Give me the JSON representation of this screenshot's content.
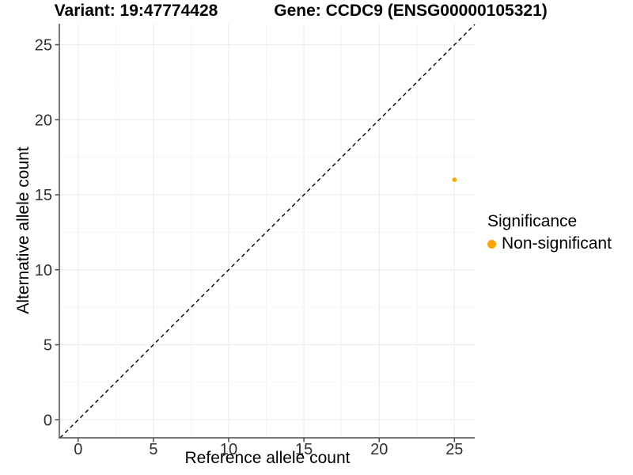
{
  "chart_data": {
    "type": "scatter",
    "title_left": "Variant: 19:47774428",
    "title_right": "Gene: CCDC9 (ENSG00000105321)",
    "xlabel": "Reference allele count",
    "ylabel": "Alternative allele count",
    "x_ticks": [
      0,
      5,
      10,
      15,
      20,
      25
    ],
    "y_ticks": [
      0,
      5,
      10,
      15,
      20,
      25
    ],
    "xlim": [
      -1.25,
      26.35
    ],
    "ylim": [
      -1.2,
      26.4
    ],
    "minor_grid_step": 2.5,
    "grid": {
      "major": true,
      "minor": true,
      "major_color": "#EDEDED",
      "minor_color": "#F6F6F6"
    },
    "axis_color": "#4D4D4D",
    "tick_label_color": "#303030",
    "identity_line": {
      "dashed": true,
      "color": "#000000"
    },
    "series": [
      {
        "name": "Non-significant",
        "color": "#FFA500",
        "points": [
          {
            "x": 25,
            "y": 16
          }
        ]
      }
    ],
    "legend": {
      "title": "Significance",
      "position": "right",
      "items": [
        {
          "label": "Non-significant",
          "color": "#FFA500"
        }
      ]
    }
  }
}
